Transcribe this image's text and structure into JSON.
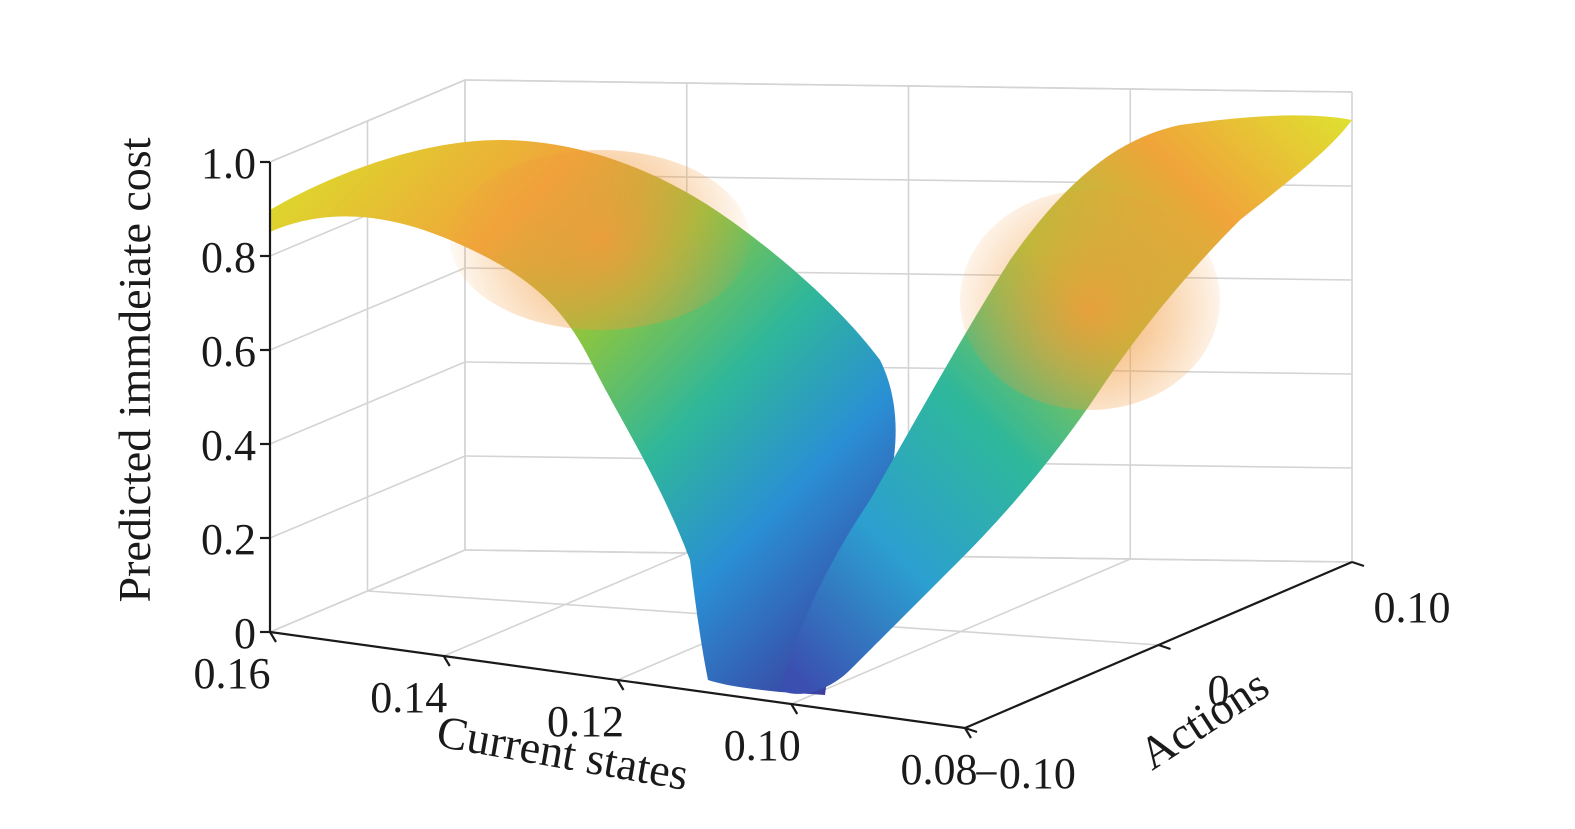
{
  "chart_data": {
    "type": "surface",
    "xlabel": "Current states",
    "ylabel": "Actions",
    "zlabel": "Predicted immdeiate cost",
    "xlim": [
      0.08,
      0.16
    ],
    "ylim": [
      -0.1,
      0.1
    ],
    "zlim": [
      0,
      1.0
    ],
    "x_ticks": [
      "0.16",
      "0.14",
      "0.12",
      "0.10",
      "0.08"
    ],
    "y_ticks": [
      "−0.10",
      "0",
      "0.10"
    ],
    "z_ticks": [
      "0",
      "0.2",
      "0.4",
      "0.6",
      "0.8",
      "1.0"
    ],
    "grid": true,
    "colormap": "parula",
    "surface_samples": [
      {
        "state": 0.16,
        "action": -0.1,
        "cost": 0.88
      },
      {
        "state": 0.14,
        "action": -0.1,
        "cost": 0.96
      },
      {
        "state": 0.12,
        "action": -0.1,
        "cost": 0.85
      },
      {
        "state": 0.1,
        "action": -0.1,
        "cost": 0.45
      },
      {
        "state": 0.095,
        "action": -0.1,
        "cost": 0.05
      },
      {
        "state": 0.095,
        "action": 0.0,
        "cost": 0.02
      },
      {
        "state": 0.1,
        "action": 0.1,
        "cost": 0.3
      },
      {
        "state": 0.11,
        "action": 0.1,
        "cost": 0.75
      },
      {
        "state": 0.12,
        "action": 0.1,
        "cost": 0.95
      }
    ]
  }
}
